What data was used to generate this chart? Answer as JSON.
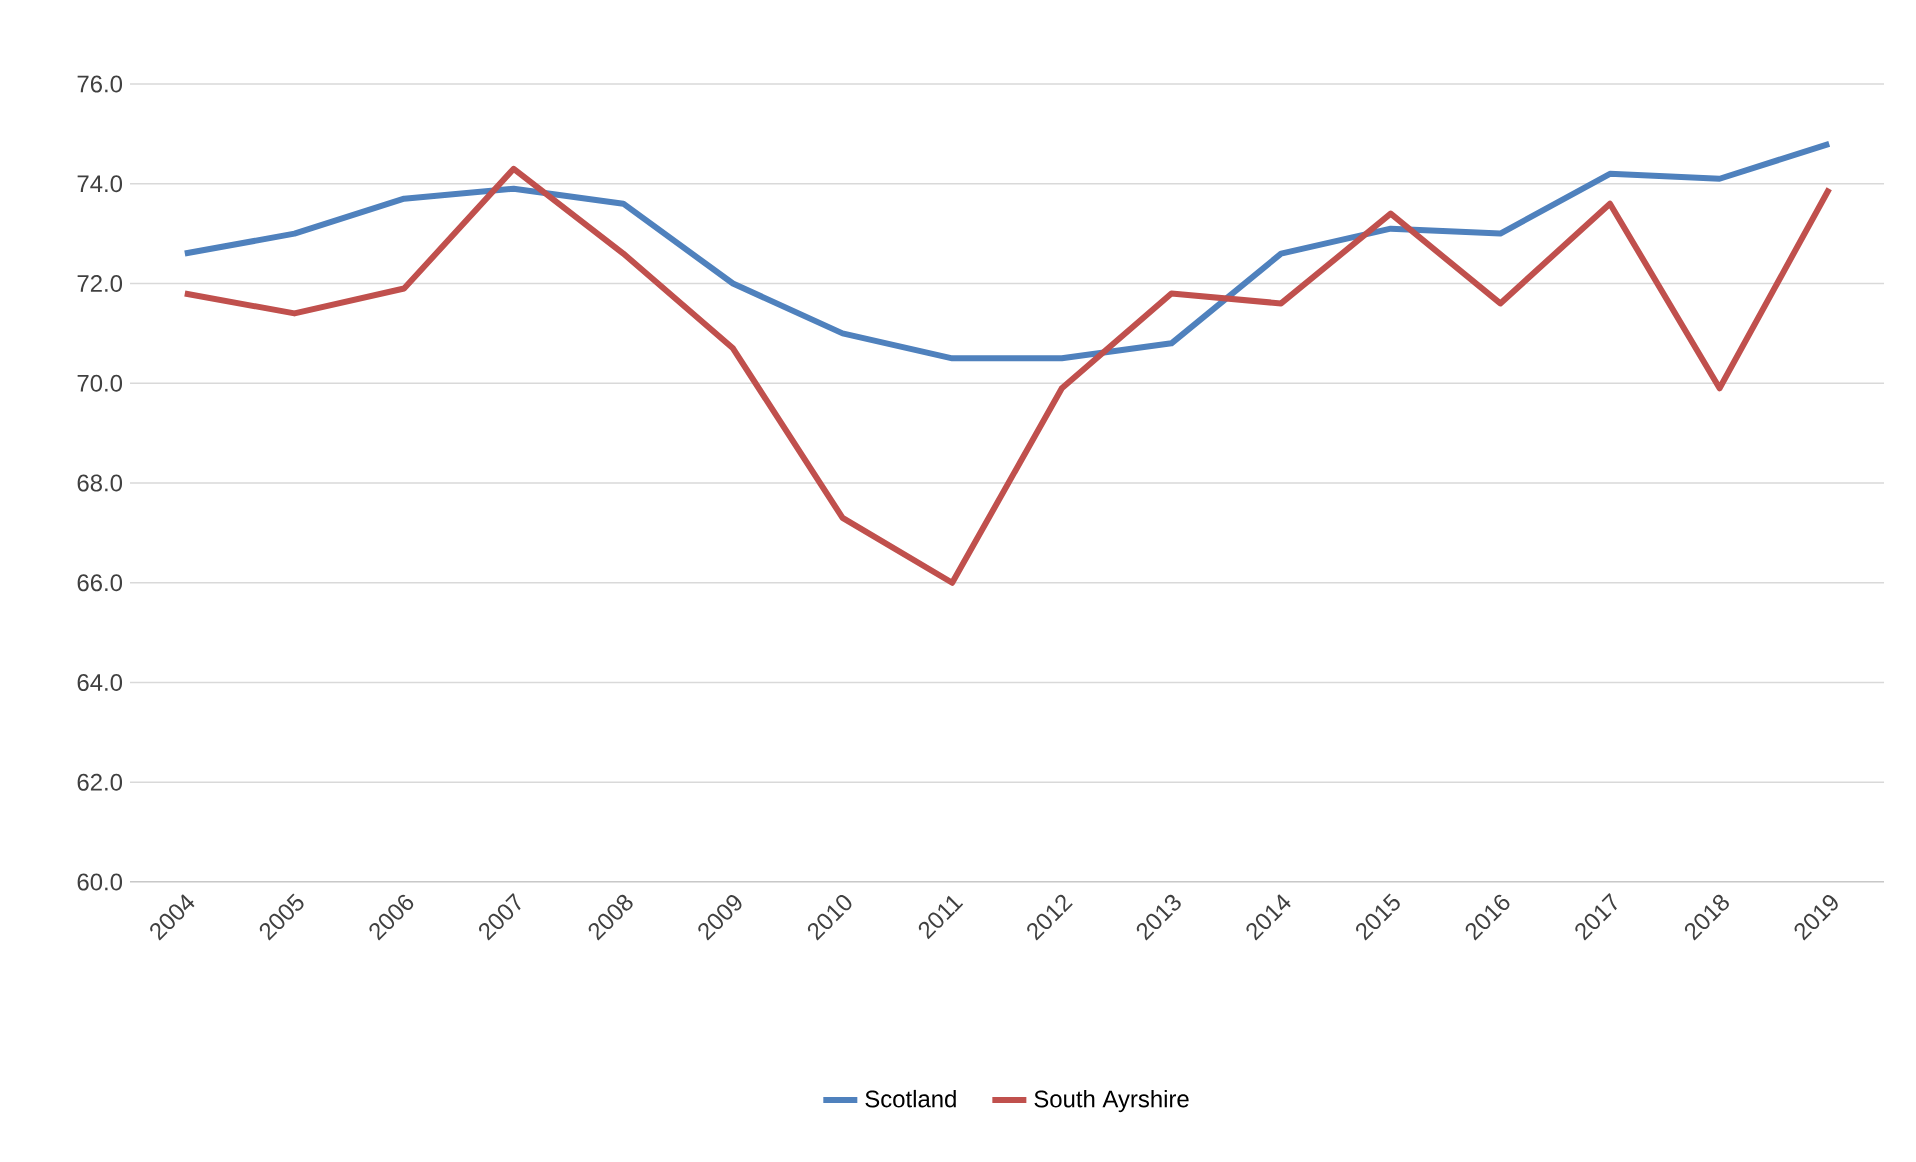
{
  "chart_data": {
    "type": "line",
    "categories": [
      "2004",
      "2005",
      "2006",
      "2007",
      "2008",
      "2009",
      "2010",
      "2011",
      "2012",
      "2013",
      "2014",
      "2015",
      "2016",
      "2017",
      "2018",
      "2019"
    ],
    "series": [
      {
        "name": "Scotland",
        "color": "#4f81bd",
        "values": [
          72.6,
          73.0,
          73.7,
          73.9,
          73.6,
          72.0,
          71.0,
          70.5,
          70.5,
          70.8,
          72.6,
          73.1,
          73.0,
          74.2,
          74.1,
          74.8
        ]
      },
      {
        "name": "South Ayrshire",
        "color": "#c0504d",
        "values": [
          71.8,
          71.4,
          71.9,
          74.3,
          72.6,
          70.7,
          67.3,
          66.0,
          69.9,
          71.8,
          71.6,
          73.4,
          71.6,
          73.6,
          69.9,
          73.9
        ]
      }
    ],
    "ylim": [
      60,
      76
    ],
    "yticks": [
      {
        "value": 60,
        "label": "60.0"
      },
      {
        "value": 62,
        "label": "62.0"
      },
      {
        "value": 64,
        "label": "64.0"
      },
      {
        "value": 66,
        "label": "66.0"
      },
      {
        "value": 68,
        "label": "68.0"
      },
      {
        "value": 70,
        "label": "70.0"
      },
      {
        "value": 72,
        "label": "72.0"
      },
      {
        "value": 74,
        "label": "74.0"
      },
      {
        "value": 76,
        "label": "76.0"
      }
    ],
    "grid": "y",
    "legend": "bottom",
    "marker": "none",
    "line_style": "solid"
  }
}
